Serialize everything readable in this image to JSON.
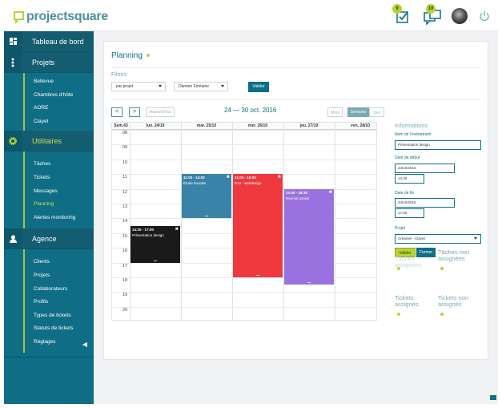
{
  "app": {
    "logo": "projectsquare",
    "colors": {
      "primary": "#0f6e85",
      "accent": "#b7d433"
    }
  },
  "topbar": {
    "tasks_badge": "9",
    "messages_badge": "10"
  },
  "sidebar": {
    "sections": [
      {
        "title": "Tableau de bord",
        "icon": "dashboard-icon",
        "items": []
      },
      {
        "title": "Projets",
        "icon": "dots-icon",
        "items": [
          "Bellevue",
          "Chambres d'hôte",
          "AORE",
          "Clayet"
        ]
      },
      {
        "title": "Utilitaires",
        "icon": "gear-icon",
        "items": [
          "Tâches",
          "Tickets",
          "Messages",
          "Planning",
          "Alertes monitoring"
        ]
      },
      {
        "title": "Agence",
        "icon": "user-icon",
        "items": [
          "Clients",
          "Projets",
          "Collaborateurs",
          "Profils",
          "Types de tickets",
          "Statuts de tickets",
          "Réglages"
        ]
      }
    ],
    "active": "Planning"
  },
  "main": {
    "title": "Planning",
    "filters": {
      "label": "Filtres",
      "project": "par projet",
      "user": "Damien Fontaine",
      "submit": "Valider"
    },
    "calendar": {
      "prev": "<",
      "next": ">",
      "today": "Aujourd'hui",
      "range": "24 — 30 oct. 2016",
      "views": [
        "Mois",
        "Semaine",
        "Jour"
      ],
      "active_view": "Semaine",
      "week_label": "Sem.43",
      "days": [
        "lun. 24/10",
        "mar. 25/10",
        "mer. 26/10",
        "jeu. 27/10",
        "ven. 28/10"
      ],
      "hours": [
        "08",
        "09",
        "10",
        "11",
        "12",
        "13",
        "14",
        "15",
        "16",
        "17",
        "18",
        "19",
        "20"
      ],
      "events": [
        {
          "day": 0,
          "start": 14.5,
          "end": 17,
          "time": "14:30 - 17:00",
          "title": "Présentation design",
          "color": "#1a1a1a"
        },
        {
          "day": 1,
          "start": 11,
          "end": 14,
          "time": "11:00 - 14:00",
          "title": "Étude lexicale",
          "color": "#3a83a8"
        },
        {
          "day": 2,
          "start": 11,
          "end": 18,
          "time": "11:00 - 18:00",
          "title": "E18 - webdesign",
          "color": "#ee3a3f"
        },
        {
          "day": 3,
          "start": 12,
          "end": 18.5,
          "time": "12:00 - 18:30",
          "title": "Réunion projet",
          "color": "#9a72e0"
        }
      ]
    },
    "info": {
      "title": "Informations",
      "name_label": "Nom de l'événement",
      "name_value": "Présentation design",
      "start_label": "Date de début",
      "start_date": "24/10/2016",
      "start_time": "14:30",
      "end_label": "Date de fin",
      "end_date": "24/10/2016",
      "end_time": "17:00",
      "project_label": "Projet",
      "project_value": "Créamel - Clayet",
      "submit": "Valider",
      "close": "Fermer",
      "lists": [
        "Tâches assignées",
        "Tâches non assignées",
        "Tickets assignés",
        "Tickets non assignés"
      ]
    }
  }
}
